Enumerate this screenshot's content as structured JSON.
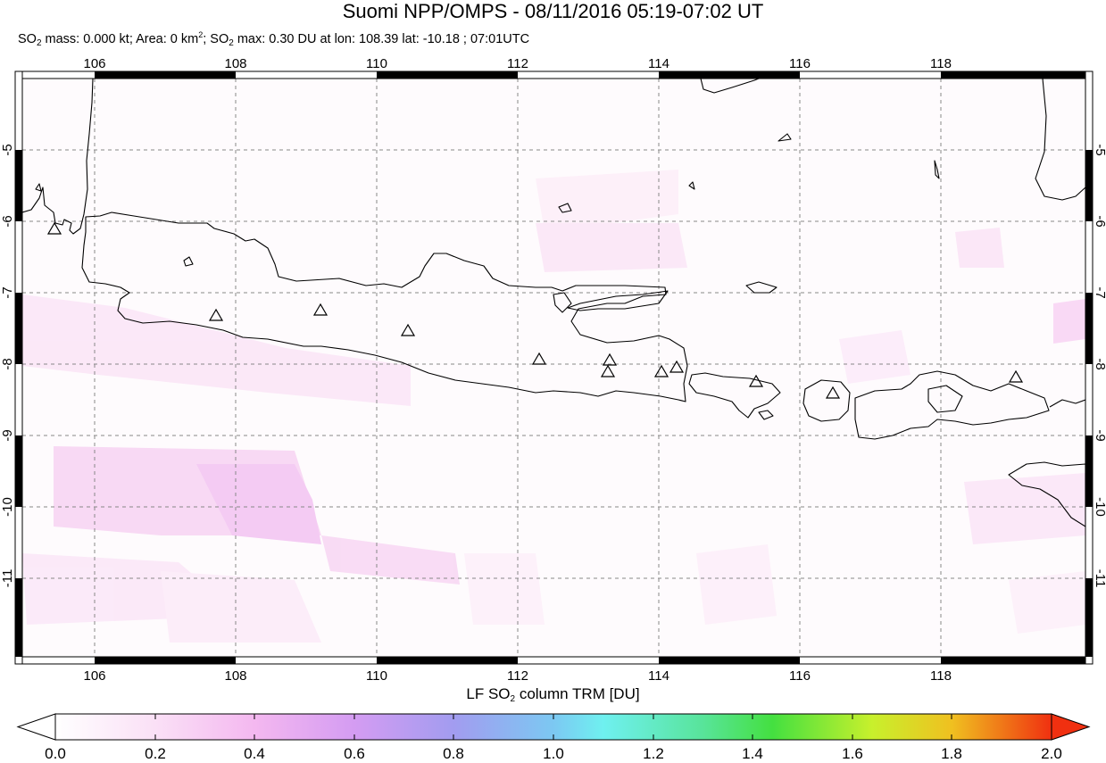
{
  "title": "Suomi NPP/OMPS - 08/11/2016 05:19-07:02 UT",
  "subtitle": {
    "so2": "SO",
    "sub2": "2",
    "mass_text": " mass: 0.000 kt; Area: 0 km",
    "sup2": "2",
    "sep": "; SO",
    "max_text": " max: 0.30 DU at lon: 108.39 lat: -10.18 ; 07:01UTC"
  },
  "map": {
    "lon_range": [
      104.9,
      119.9
    ],
    "lat_range": [
      -12.05,
      -3.95
    ],
    "lon_ticks": [
      "106",
      "108",
      "110",
      "112",
      "114",
      "116",
      "118"
    ],
    "lat_ticks": [
      "-5",
      "-6",
      "-7",
      "-8",
      "-9",
      "-10",
      "-11"
    ],
    "grid": "dashed"
  },
  "colorbar": {
    "label_pre": "LF SO",
    "label_sub": "2",
    "label_post": " column TRM [DU]",
    "ticks": [
      "0.0",
      "0.2",
      "0.4",
      "0.6",
      "0.8",
      "1.0",
      "1.2",
      "1.4",
      "1.6",
      "1.8",
      "2.0"
    ],
    "range": [
      0.0,
      2.0
    ],
    "colors": [
      "#ffffff",
      "#f7c9f2",
      "#d79af0",
      "#9a9af0",
      "#78c4f0",
      "#6ef0f0",
      "#4ee07a",
      "#4ee030",
      "#d8f030",
      "#f0b020",
      "#f03010"
    ]
  },
  "volcano_icon": "triangle-outline"
}
